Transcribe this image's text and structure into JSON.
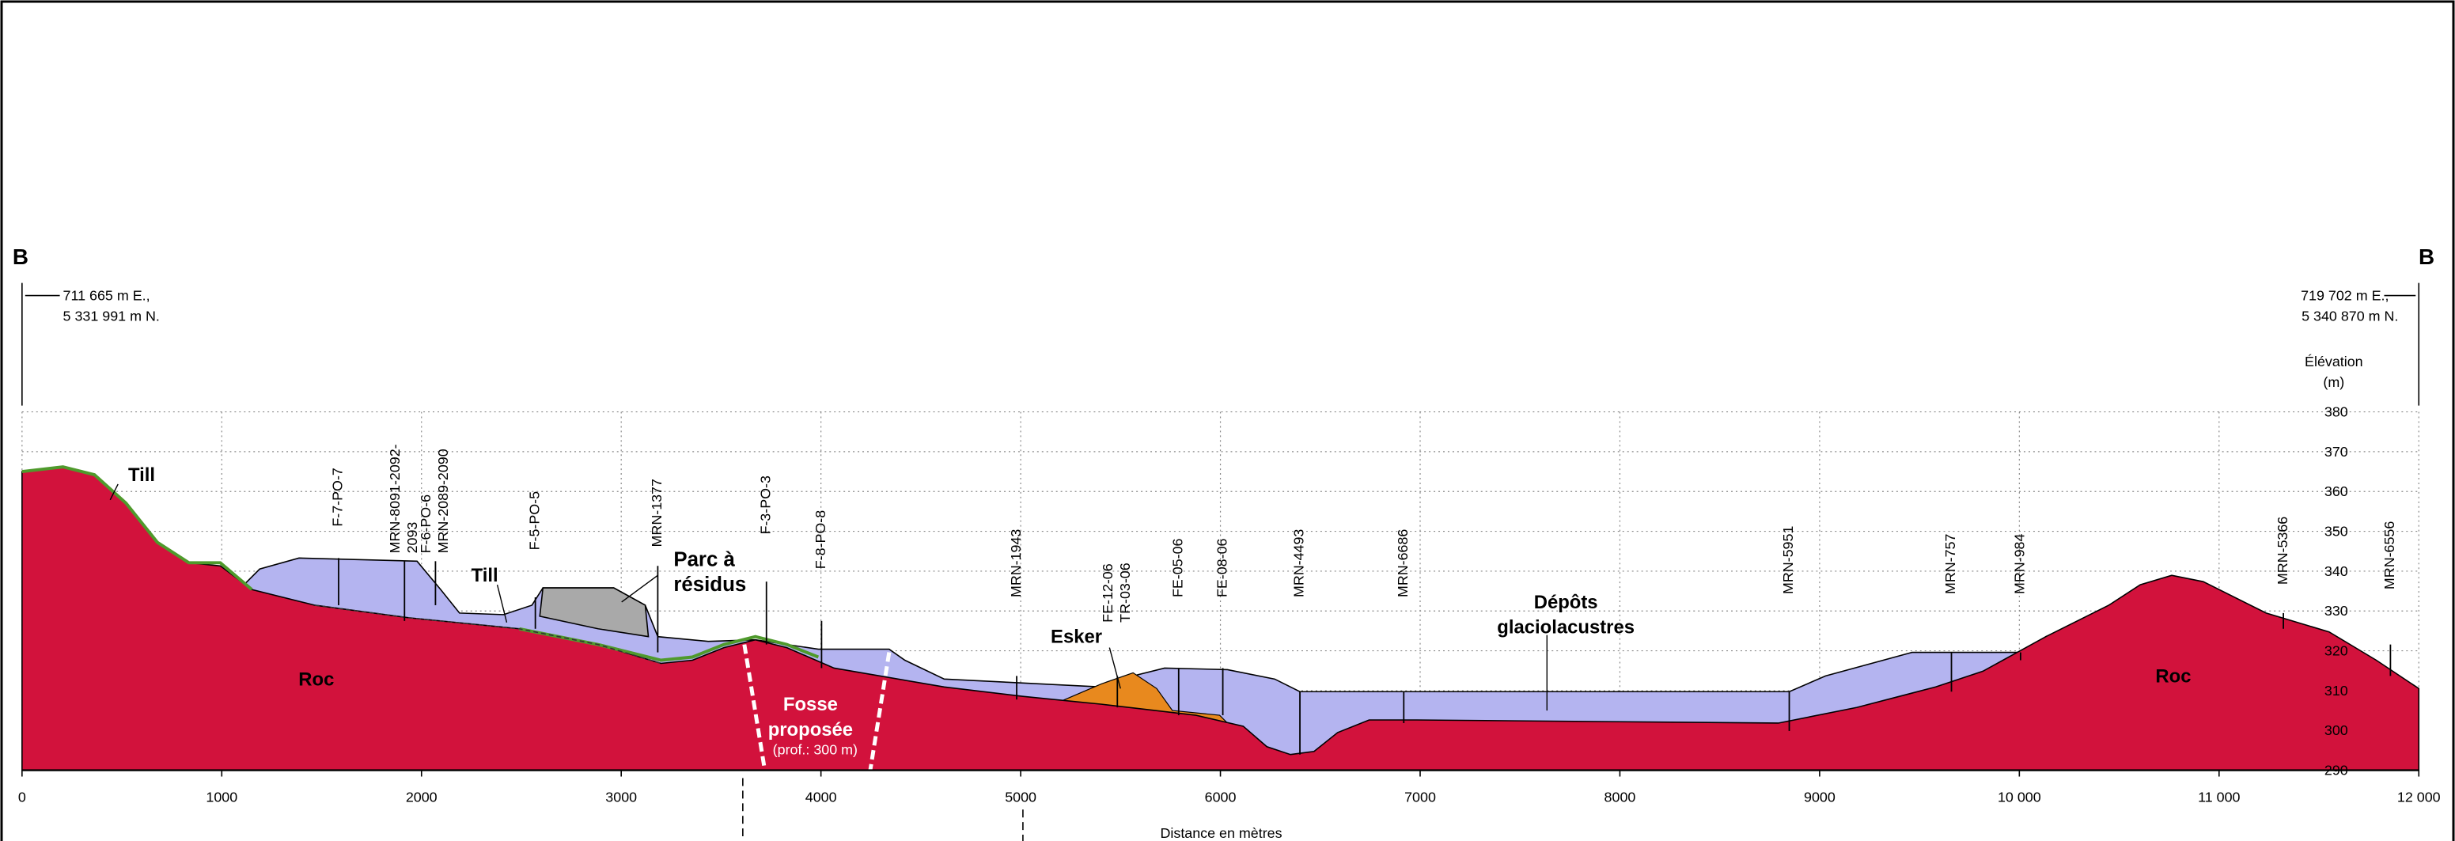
{
  "header": {
    "left_marker": "B",
    "right_marker": "B",
    "left_coords": [
      "711 665 m E.,",
      "5 331 991 m N."
    ],
    "right_coords": [
      "719 702 m E.,",
      "5 340 870 m N."
    ]
  },
  "axes": {
    "x_label": "Distance en mètres",
    "y_label": [
      "Élévation",
      "(m)"
    ],
    "xlim": [
      0,
      12000
    ],
    "xticks": [
      0,
      1000,
      2000,
      3000,
      4000,
      5000,
      6000,
      7000,
      8000,
      9000,
      {
        "value": 10000,
        "label": "10 000"
      },
      {
        "value": 11000,
        "label": "11 000"
      },
      {
        "value": 12000,
        "label": "12 000"
      }
    ],
    "ylim": [
      290,
      380
    ],
    "yticks": [
      290,
      300,
      310,
      320,
      330,
      340,
      350,
      360,
      370,
      380
    ]
  },
  "boreholes": [
    {
      "lines": [
        "F-7-PO-7"
      ],
      "x": 1585
    },
    {
      "lines": [
        "MRN-8091-2092-",
        "2093"
      ],
      "x": 1915
    },
    {
      "lines": [
        "F-6-PO-6",
        "MRN-2089-2090"
      ],
      "x": 2070
    },
    {
      "lines": [
        "F-5-PO-5"
      ],
      "x": 2570
    },
    {
      "lines": [
        "MRN-1377"
      ],
      "x": 3183
    },
    {
      "lines": [
        "F-3-PO-3"
      ],
      "x": 3727
    },
    {
      "lines": [
        "F-8-PO-8"
      ],
      "x": 4003
    },
    {
      "lines": [
        "MRN-1943"
      ],
      "x": 4980
    },
    {
      "lines": [
        "FE-12-06",
        "TR-03-06"
      ],
      "x": 5484
    },
    {
      "lines": [
        "FE-05-06"
      ],
      "x": 5791
    },
    {
      "lines": [
        "FE-08-06"
      ],
      "x": 6012
    },
    {
      "lines": [
        "MRN-4493"
      ],
      "x": 6398
    },
    {
      "lines": [
        "MRN-6686"
      ],
      "x": 6918
    },
    {
      "lines": [
        "MRN-5951"
      ],
      "x": 8848
    },
    {
      "lines": [
        "MRN-757"
      ],
      "x": 9660
    },
    {
      "lines": [
        "MRN-984"
      ],
      "x": 10006
    },
    {
      "lines": [
        "MRN-5366"
      ],
      "x": 11322
    },
    {
      "lines": [
        "MRN-6556"
      ],
      "x": 11858
    }
  ],
  "annotations": [
    {
      "lines": [
        "Till"
      ]
    },
    {
      "lines": [
        "Till"
      ]
    },
    {
      "lines": [
        "Parc à",
        "résidus"
      ]
    },
    {
      "lines": [
        "Roc"
      ]
    },
    {
      "lines": [
        "Esker"
      ]
    },
    {
      "lines": [
        "Fosse",
        "proposée"
      ]
    },
    {
      "lines": [
        "(prof.: 300 m)"
      ]
    },
    {
      "lines": [
        "Dépôts",
        "glaciolacustres"
      ]
    },
    {
      "lines": [
        "Roc"
      ]
    }
  ]
}
